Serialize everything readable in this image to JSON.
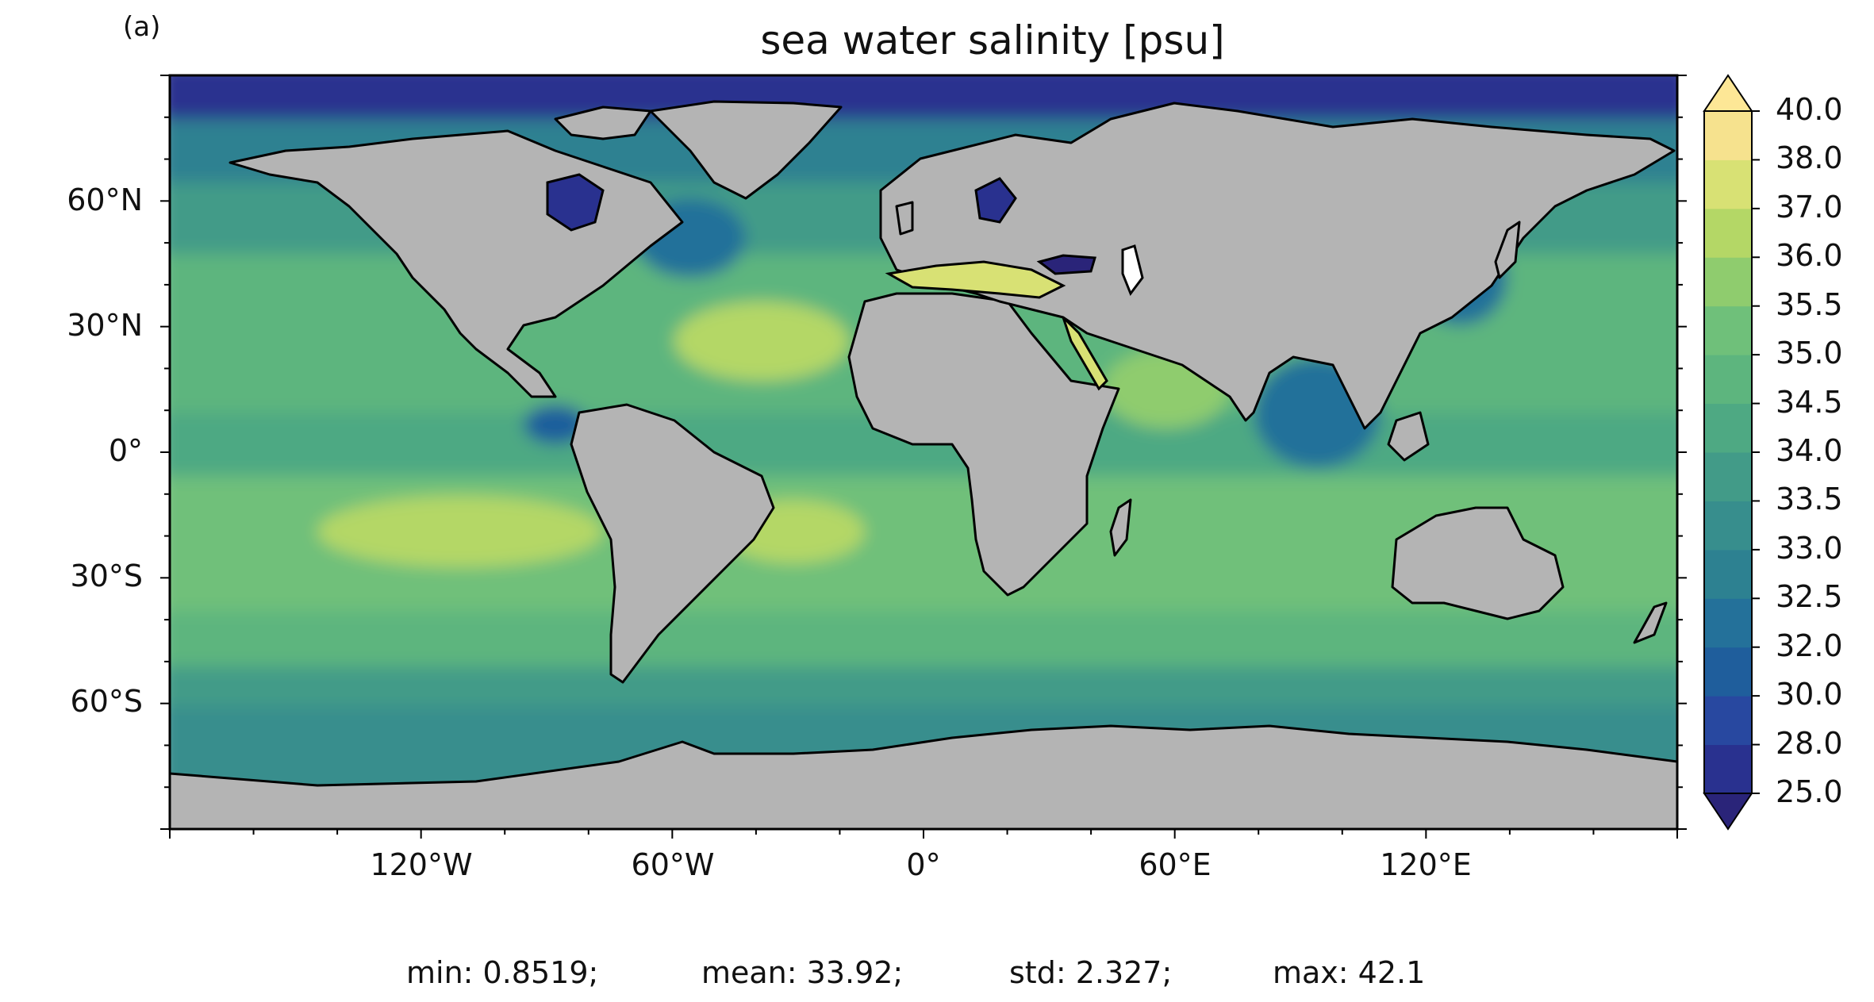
{
  "panel_label": "(a)",
  "title": "sea water salinity [psu]",
  "colors": {
    "land": "#b4b4b4",
    "ice": "#ffffff",
    "coast": "#000000"
  },
  "lat_ticks": [
    "60°N",
    "30°N",
    "0°",
    "30°S",
    "60°S"
  ],
  "lon_ticks": [
    "120°W",
    "60°W",
    "0°",
    "60°E",
    "120°E"
  ],
  "colorbar": {
    "extend": "both",
    "levels": [
      "25.0",
      "28.0",
      "30.0",
      "32.0",
      "32.5",
      "33.0",
      "33.5",
      "34.0",
      "34.5",
      "35.0",
      "35.5",
      "36.0",
      "37.0",
      "38.0",
      "40.0"
    ],
    "colors": [
      "#2a2479",
      "#29318f",
      "#2848a0",
      "#1f5e9c",
      "#24719a",
      "#2d8191",
      "#378e8d",
      "#429b88",
      "#4ea983",
      "#5db57e",
      "#6fc07a",
      "#8fcc6e",
      "#b4d766",
      "#d8e174",
      "#f6e28e",
      "#fde796"
    ]
  },
  "stats": {
    "min": "min: 0.8519;",
    "mean": "mean: 33.92;",
    "std": "std: 2.327;",
    "max": "max: 42.1"
  }
}
